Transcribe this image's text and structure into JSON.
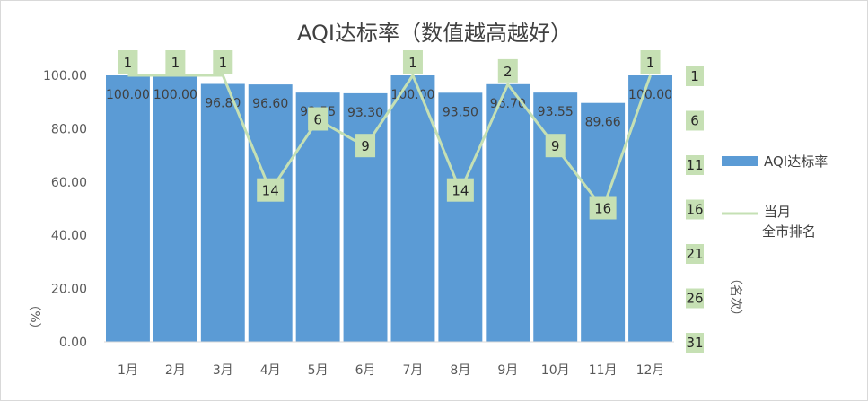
{
  "chart_data": {
    "type": "bar",
    "title": "AQI达标率（数值越高越好）",
    "categories": [
      "1月",
      "2月",
      "3月",
      "4月",
      "5月",
      "6月",
      "7月",
      "8月",
      "9月",
      "10月",
      "11月",
      "12月"
    ],
    "series": [
      {
        "name": "AQI达标率",
        "type": "bar",
        "axis": "left",
        "values": [
          100.0,
          100.0,
          96.8,
          96.6,
          93.55,
          93.3,
          100.0,
          93.5,
          96.7,
          93.55,
          89.66,
          100.0
        ],
        "labels": [
          "100.00",
          "100.00",
          "96.80",
          "96.60",
          "93.55",
          "93.30",
          "100.00",
          "93.50",
          "96.70",
          "93.55",
          "89.66",
          "100.00"
        ],
        "color": "#5b9bd5"
      },
      {
        "name": "当月\n全市排名",
        "type": "line",
        "axis": "right",
        "values": [
          1,
          1,
          1,
          14,
          6,
          9,
          1,
          14,
          2,
          9,
          16,
          1
        ],
        "color": "#c5e0b4"
      }
    ],
    "y_left": {
      "label": "（%）",
      "ylim": [
        0,
        100
      ],
      "ticks": [
        "0.00",
        "20.00",
        "40.00",
        "60.00",
        "80.00",
        "100.00"
      ]
    },
    "y_right": {
      "label": "（名次）",
      "ylim": [
        1,
        31
      ],
      "reversed": true,
      "ticks": [
        "1",
        "6",
        "11",
        "16",
        "21",
        "26",
        "31"
      ]
    },
    "legend_position": "right",
    "grid": false
  }
}
